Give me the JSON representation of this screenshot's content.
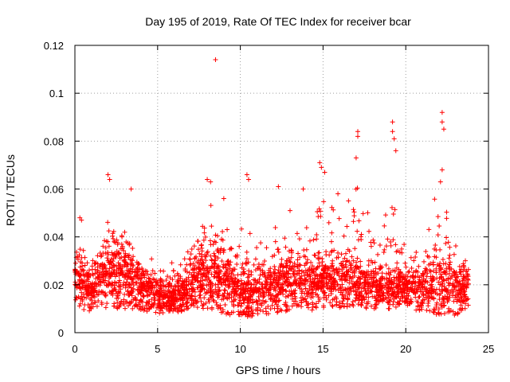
{
  "chart_data": {
    "type": "scatter",
    "title": "Day 195 of 2019, Rate Of TEC Index for receiver bcar",
    "xlabel": "GPS time / hours",
    "ylabel": "ROTI / TECUs",
    "xlim": [
      0,
      25
    ],
    "ylim": [
      0,
      0.12
    ],
    "xticks": [
      0,
      5,
      10,
      15,
      20,
      25
    ],
    "xtick_labels": [
      "0",
      "5",
      "10",
      "15",
      "20",
      "25"
    ],
    "yticks": [
      0,
      0.02,
      0.04,
      0.06,
      0.08,
      0.1,
      0.12
    ],
    "ytick_labels": [
      "0",
      "0.02",
      "0.04",
      "0.06",
      "0.08",
      "0.1",
      "0.12"
    ],
    "grid": true,
    "marker": "+",
    "color": "#ff0000",
    "series": [
      {
        "name": "ROTI",
        "envelope_note": "dense scatter of ~thousands of points; band values sampled from figure",
        "band_hours": [
          0,
          1,
          2,
          3,
          4,
          5,
          6,
          7,
          8,
          9,
          10,
          11,
          12,
          13,
          14,
          15,
          16,
          17,
          18,
          19,
          20,
          21,
          22,
          23,
          23.8
        ],
        "band_low": [
          0.01,
          0.008,
          0.01,
          0.01,
          0.009,
          0.008,
          0.008,
          0.01,
          0.01,
          0.008,
          0.006,
          0.007,
          0.008,
          0.009,
          0.009,
          0.01,
          0.01,
          0.01,
          0.01,
          0.01,
          0.01,
          0.009,
          0.007,
          0.007,
          0.01
        ],
        "band_mid": [
          0.024,
          0.016,
          0.025,
          0.024,
          0.018,
          0.015,
          0.014,
          0.02,
          0.024,
          0.02,
          0.016,
          0.016,
          0.018,
          0.02,
          0.02,
          0.02,
          0.021,
          0.02,
          0.018,
          0.018,
          0.018,
          0.018,
          0.02,
          0.018,
          0.02
        ],
        "band_high": [
          0.04,
          0.03,
          0.058,
          0.044,
          0.03,
          0.036,
          0.03,
          0.05,
          0.06,
          0.05,
          0.06,
          0.04,
          0.05,
          0.055,
          0.06,
          0.065,
          0.058,
          0.065,
          0.05,
          0.065,
          0.04,
          0.04,
          0.07,
          0.04,
          0.03
        ],
        "outliers": [
          {
            "x": 8.5,
            "y": 0.114
          },
          {
            "x": 22.2,
            "y": 0.092
          },
          {
            "x": 22.2,
            "y": 0.088
          },
          {
            "x": 22.3,
            "y": 0.085
          },
          {
            "x": 22.2,
            "y": 0.068
          },
          {
            "x": 19.2,
            "y": 0.088
          },
          {
            "x": 19.2,
            "y": 0.084
          },
          {
            "x": 19.3,
            "y": 0.081
          },
          {
            "x": 19.4,
            "y": 0.076
          },
          {
            "x": 17.1,
            "y": 0.084
          },
          {
            "x": 17.1,
            "y": 0.082
          },
          {
            "x": 17.0,
            "y": 0.073
          },
          {
            "x": 14.8,
            "y": 0.071
          },
          {
            "x": 14.9,
            "y": 0.069
          },
          {
            "x": 15.1,
            "y": 0.067
          },
          {
            "x": 2.0,
            "y": 0.066
          },
          {
            "x": 2.1,
            "y": 0.064
          },
          {
            "x": 10.4,
            "y": 0.066
          },
          {
            "x": 10.5,
            "y": 0.064
          },
          {
            "x": 8.0,
            "y": 0.064
          },
          {
            "x": 8.2,
            "y": 0.063
          },
          {
            "x": 12.3,
            "y": 0.061
          },
          {
            "x": 13.8,
            "y": 0.06
          },
          {
            "x": 3.4,
            "y": 0.06
          },
          {
            "x": 22.1,
            "y": 0.063
          },
          {
            "x": 0.3,
            "y": 0.048
          },
          {
            "x": 0.4,
            "y": 0.047
          },
          {
            "x": 15.9,
            "y": 0.058
          },
          {
            "x": 9.0,
            "y": 0.056
          }
        ]
      }
    ]
  }
}
